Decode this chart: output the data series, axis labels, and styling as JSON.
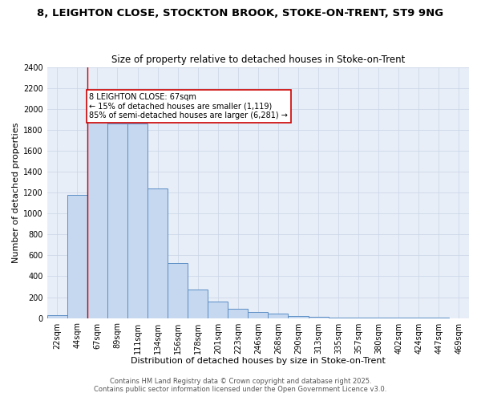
{
  "title1": "8, LEIGHTON CLOSE, STOCKTON BROOK, STOKE-ON-TRENT, ST9 9NG",
  "title2": "Size of property relative to detached houses in Stoke-on-Trent",
  "xlabel": "Distribution of detached houses by size in Stoke-on-Trent",
  "ylabel": "Number of detached properties",
  "bins": [
    "22sqm",
    "44sqm",
    "67sqm",
    "89sqm",
    "111sqm",
    "134sqm",
    "156sqm",
    "178sqm",
    "201sqm",
    "223sqm",
    "246sqm",
    "268sqm",
    "290sqm",
    "313sqm",
    "335sqm",
    "357sqm",
    "380sqm",
    "402sqm",
    "424sqm",
    "447sqm",
    "469sqm"
  ],
  "values": [
    25,
    1175,
    2000,
    1860,
    1860,
    1240,
    525,
    275,
    155,
    90,
    55,
    45,
    20,
    10,
    5,
    3,
    3,
    1,
    1,
    1,
    0
  ],
  "bar_color": "#c5d8f0",
  "bar_edge_color": "#5b8ec5",
  "annotation_text": "8 LEIGHTON CLOSE: 67sqm\n← 15% of detached houses are smaller (1,119)\n85% of semi-detached houses are larger (6,281) →",
  "annotation_box_color": "#ffffff",
  "annotation_box_edge_color": "#cc0000",
  "red_line_color": "#cc0000",
  "footer1": "Contains HM Land Registry data © Crown copyright and database right 2025.",
  "footer2": "Contains public sector information licensed under the Open Government Licence v3.0.",
  "bg_color": "#ffffff",
  "grid_color": "#c8d4e4",
  "plot_bg_color": "#e8eef8",
  "ylim": [
    0,
    2400
  ],
  "yticks": [
    0,
    200,
    400,
    600,
    800,
    1000,
    1200,
    1400,
    1600,
    1800,
    2000,
    2200,
    2400
  ],
  "title1_fontsize": 9.5,
  "title2_fontsize": 8.5,
  "xlabel_fontsize": 8,
  "ylabel_fontsize": 8,
  "tick_fontsize": 7,
  "annotation_fontsize": 7,
  "footer_fontsize": 6
}
